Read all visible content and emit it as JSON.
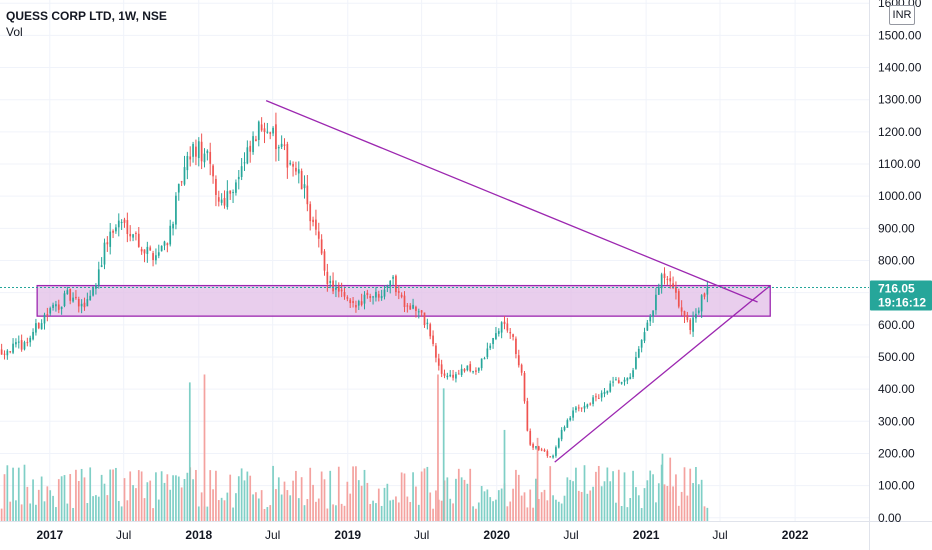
{
  "legend": {
    "title": "QUESS CORP LTD, 1W, NSE",
    "indicator": "Vol"
  },
  "currency": "INR",
  "last_price": {
    "value": "716.05",
    "countdown": "19:16:12"
  },
  "colors": {
    "up": "#26a69a",
    "down": "#ef5350",
    "vol_up": "#7fcfc6",
    "vol_down": "#f4a29f",
    "drawing": "#9c27b0",
    "zone_fill": "#e1bee7",
    "price_line": "#26a69a",
    "grid": "#f0f3fa",
    "axis_text": "#131722"
  },
  "chart_data": {
    "type": "candlestick",
    "title": "QUESS CORP LTD, 1W, NSE",
    "y_axis": {
      "side": "right",
      "ticks": [
        "0.00",
        "100.00",
        "200.00",
        "300.00",
        "400.00",
        "500.00",
        "600.00",
        "700.00",
        "800.00",
        "900.00",
        "1000.00",
        "1100.00",
        "1200.00",
        "1300.00",
        "1400.00",
        "1500.00",
        "1600.00"
      ],
      "range": [
        -10,
        1610
      ]
    },
    "x_axis": {
      "range": [
        "2016-09-01",
        "2022-07-01"
      ],
      "labels": [
        {
          "text": "2017",
          "date": "2017-01-01",
          "year": true
        },
        {
          "text": "Jul",
          "date": "2017-07-01",
          "year": false
        },
        {
          "text": "2018",
          "date": "2018-01-01",
          "year": true
        },
        {
          "text": "Jul",
          "date": "2018-07-01",
          "year": false
        },
        {
          "text": "2019",
          "date": "2019-01-01",
          "year": true
        },
        {
          "text": "Jul",
          "date": "2019-07-01",
          "year": false
        },
        {
          "text": "2020",
          "date": "2020-01-01",
          "year": true
        },
        {
          "text": "Jul",
          "date": "2020-07-01",
          "year": false
        },
        {
          "text": "2021",
          "date": "2021-01-01",
          "year": true
        },
        {
          "text": "Jul",
          "date": "2021-07-01",
          "year": false
        },
        {
          "text": "2022",
          "date": "2022-01-01",
          "year": true
        }
      ]
    },
    "price_path": [
      {
        "date": "2016-09-05",
        "close": 520
      },
      {
        "date": "2016-11-01",
        "close": 540
      },
      {
        "date": "2016-12-20",
        "close": 630
      },
      {
        "date": "2017-02-15",
        "close": 690
      },
      {
        "date": "2017-03-20",
        "close": 650
      },
      {
        "date": "2017-04-20",
        "close": 720
      },
      {
        "date": "2017-05-20",
        "close": 860
      },
      {
        "date": "2017-06-20",
        "close": 920
      },
      {
        "date": "2017-07-20",
        "close": 900
      },
      {
        "date": "2017-08-20",
        "close": 830
      },
      {
        "date": "2017-09-20",
        "close": 820
      },
      {
        "date": "2017-10-20",
        "close": 880
      },
      {
        "date": "2017-11-20",
        "close": 1050
      },
      {
        "date": "2017-12-20",
        "close": 1150
      },
      {
        "date": "2018-01-20",
        "close": 1120
      },
      {
        "date": "2018-02-20",
        "close": 980
      },
      {
        "date": "2018-03-20",
        "close": 1020
      },
      {
        "date": "2018-04-20",
        "close": 1090
      },
      {
        "date": "2018-05-20",
        "close": 1180
      },
      {
        "date": "2018-06-15",
        "close": 1240
      },
      {
        "date": "2018-07-15",
        "close": 1140
      },
      {
        "date": "2018-08-15",
        "close": 1110
      },
      {
        "date": "2018-09-15",
        "close": 1020
      },
      {
        "date": "2018-10-15",
        "close": 880
      },
      {
        "date": "2018-11-15",
        "close": 730
      },
      {
        "date": "2018-12-15",
        "close": 690
      },
      {
        "date": "2019-01-15",
        "close": 650
      },
      {
        "date": "2019-02-15",
        "close": 700
      },
      {
        "date": "2019-03-15",
        "close": 690
      },
      {
        "date": "2019-04-15",
        "close": 750
      },
      {
        "date": "2019-05-15",
        "close": 680
      },
      {
        "date": "2019-06-15",
        "close": 650
      },
      {
        "date": "2019-07-15",
        "close": 600
      },
      {
        "date": "2019-08-15",
        "close": 450
      },
      {
        "date": "2019-09-15",
        "close": 440
      },
      {
        "date": "2019-10-15",
        "close": 460
      },
      {
        "date": "2019-11-15",
        "close": 460
      },
      {
        "date": "2019-12-10",
        "close": 520
      },
      {
        "date": "2020-01-10",
        "close": 600
      },
      {
        "date": "2020-02-01",
        "close": 590
      },
      {
        "date": "2020-03-01",
        "close": 450
      },
      {
        "date": "2020-03-20",
        "close": 230
      },
      {
        "date": "2020-04-20",
        "close": 210
      },
      {
        "date": "2020-05-15",
        "close": 185
      },
      {
        "date": "2020-06-15",
        "close": 290
      },
      {
        "date": "2020-07-15",
        "close": 340
      },
      {
        "date": "2020-08-15",
        "close": 360
      },
      {
        "date": "2020-09-15",
        "close": 380
      },
      {
        "date": "2020-10-15",
        "close": 420
      },
      {
        "date": "2020-11-15",
        "close": 420
      },
      {
        "date": "2020-12-10",
        "close": 500
      },
      {
        "date": "2021-01-01",
        "close": 580
      },
      {
        "date": "2021-01-20",
        "close": 660
      },
      {
        "date": "2021-02-10",
        "close": 750
      },
      {
        "date": "2021-03-01",
        "close": 720
      },
      {
        "date": "2021-03-25",
        "close": 660
      },
      {
        "date": "2021-04-15",
        "close": 590
      },
      {
        "date": "2021-05-05",
        "close": 640
      },
      {
        "date": "2021-06-01",
        "close": 716
      }
    ],
    "volume_spikes": [
      {
        "date": "2017-12-10",
        "volume": 350,
        "up": true
      },
      {
        "date": "2018-01-15",
        "volume": 370,
        "up": false
      },
      {
        "date": "2019-08-10",
        "volume": 370,
        "up": false
      },
      {
        "date": "2019-08-24",
        "volume": 335,
        "up": true
      },
      {
        "date": "2020-01-20",
        "volume": 230,
        "up": true
      },
      {
        "date": "2020-04-10",
        "volume": 210,
        "up": false
      },
      {
        "date": "2021-02-10",
        "volume": 170,
        "up": true
      },
      {
        "date": "2021-03-01",
        "volume": 160,
        "up": false
      }
    ],
    "volume_pixels_per_unit": 0.3,
    "support_zone": {
      "from": "2016-12-01",
      "to": "2021-11-01",
      "low": 627,
      "high": 722
    },
    "trendlines": [
      {
        "name": "descending resistance",
        "start": {
          "date": "2018-06-15",
          "price": 1297
        },
        "end": {
          "date": "2021-10-01",
          "price": 671
        }
      },
      {
        "name": "ascending support",
        "start": {
          "date": "2020-05-22",
          "price": 173
        },
        "end": {
          "date": "2021-11-01",
          "price": 722
        }
      }
    ],
    "last_price_value": 716.05
  }
}
